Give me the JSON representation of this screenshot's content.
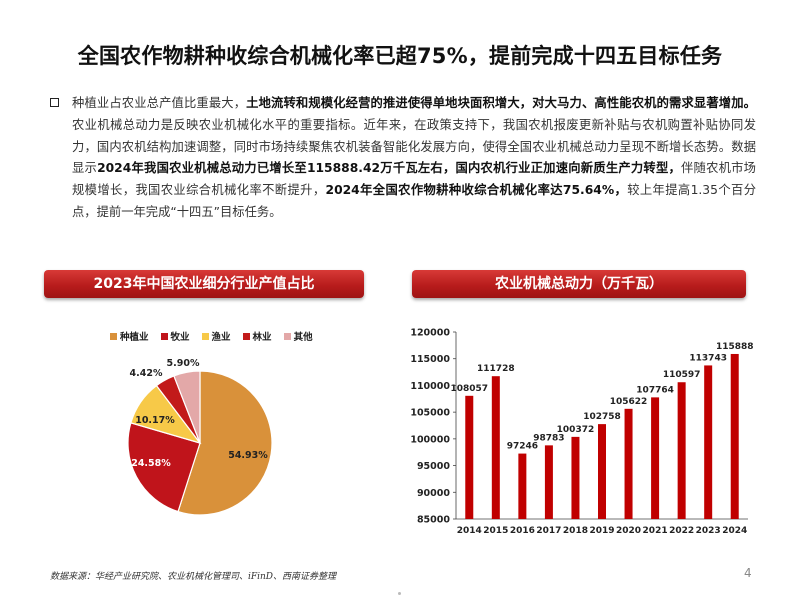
{
  "page": {
    "title": "全国农作物耕种收综合机械化率已超75%，提前完成十四五目标任务",
    "paragraph": [
      {
        "text": "种植业占农业总产值比重最大，",
        "bold": false
      },
      {
        "text": "土地流转和规模化经营的推进使得单地块面积增大，对大马力、高性能农机的需求显著增加。",
        "bold": true
      },
      {
        "text": "农业机械总动力是反映农业机械化水平的重要指标。近年来，在政策支持下，我国农机报废更新补贴与农机购置补贴协同发力，国内农机结构加速调整，同时市场持续聚焦农机装备智能化发展方向，使得全国农业机械总动力呈现不断增长态势。数据显示",
        "bold": false
      },
      {
        "text": "2024年我国农业机械总动力已增长至115888.42万千瓦左右，国内农机行业正加速向新质生产力转型，",
        "bold": true
      },
      {
        "text": "伴随农机市场规模增长，我国农业综合机械化率不断提升，",
        "bold": false
      },
      {
        "text": "2024年全国农作物耕种收综合机械化率达75.64%，",
        "bold": true
      },
      {
        "text": "较上年提高1.35个百分点，提前一年完成“十四五”目标任务。",
        "bold": false
      }
    ],
    "left_banner": "2023年中国农业细分行业产值占比",
    "right_banner": "农业机械总动力（万千瓦）",
    "source": "数据来源：华经产业研究院、农业机械化管理司、iFinD、西南证券整理",
    "page_number": "4"
  },
  "chart_data": [
    {
      "type": "pie",
      "title": "2023年中国农业细分行业产值占比",
      "legend_position": "top",
      "categories": [
        "种植业",
        "牧业",
        "渔业",
        "林业",
        "其他"
      ],
      "values": [
        54.93,
        24.58,
        10.17,
        4.42,
        5.9
      ],
      "labels": [
        "54.93%",
        "24.58%",
        "10.17%",
        "4.42%",
        "5.90%"
      ],
      "colors": [
        "#d9913a",
        "#c0141b",
        "#f7c948",
        "#c21a1a",
        "#e3a8a8"
      ]
    },
    {
      "type": "bar",
      "title": "农业机械总动力（万千瓦）",
      "categories": [
        "2014",
        "2015",
        "2016",
        "2017",
        "2018",
        "2019",
        "2020",
        "2021",
        "2022",
        "2023",
        "2024"
      ],
      "values": [
        108057,
        111728,
        97246,
        98783,
        100372,
        102758,
        105622,
        107764,
        110597,
        113743,
        115888
      ],
      "ylim": [
        85000,
        120000
      ],
      "yticks": [
        "85000",
        "90000",
        "95000",
        "100000",
        "105000",
        "110000",
        "115000",
        "120000"
      ],
      "grid": false,
      "color": "#c00000"
    }
  ]
}
